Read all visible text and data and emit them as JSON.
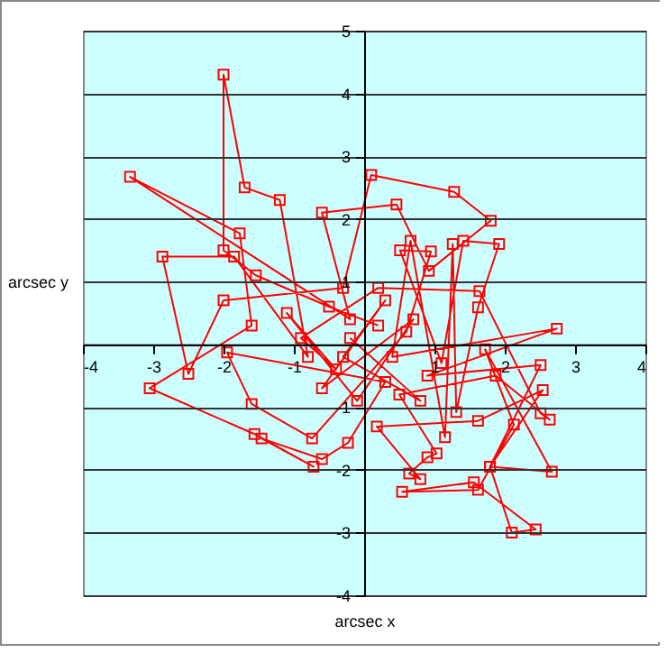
{
  "chart_data": {
    "type": "line",
    "xlabel": "arcsec x",
    "ylabel": "arcsec y",
    "xlim": [
      -4,
      4
    ],
    "ylim": [
      -4,
      5
    ],
    "xticks": [
      -4,
      -3,
      -2,
      -1,
      {
        "value": 0,
        "label": null
      },
      1,
      2,
      3,
      4
    ],
    "yticks": [
      -4,
      -3,
      -2,
      -1,
      {
        "value": 0,
        "label": null
      },
      1,
      2,
      3,
      4,
      5
    ],
    "grid": "y",
    "marker": "square",
    "line_style": "solid",
    "series": [
      {
        "color": "#ff0000",
        "x": [
          0.2,
          -0.5,
          -1.54,
          -2.0,
          -2.0,
          -1.7,
          -1.2,
          -0.8,
          -1.85,
          -2.87,
          -2.5,
          -2.0,
          -0.3,
          0.1,
          1.28,
          1.8,
          0.92,
          0.46,
          -0.6,
          -0.2,
          -3.33,
          -1.77,
          -1.6,
          -3.05,
          -1.56,
          -0.72,
          -1.46,
          -0.6,
          -0.23,
          0.3,
          -1.95,
          -1.6,
          -0.74,
          0.6,
          0.95,
          0.51,
          1.1,
          1.41,
          1.92,
          1.62,
          1.31,
          1.26,
          1.15,
          0.66,
          0.4,
          2.74,
          0.9,
          2.51,
          1.79,
          2.67,
          1.72,
          2.13,
          1.62,
          0.54,
          1.56,
          2.44,
          2.1,
          1.79,
          2.54,
          1.62,
          0.18,
          0.8,
          0.64,
          0.9,
          1.03,
          0.5,
          1.87,
          2.64,
          2.51,
          1.64,
          0.2,
          -0.9,
          -0.4,
          -1.1,
          -0.1,
          0.7,
          -0.6,
          0.3,
          -0.3,
          0.8,
          -0.2
        ],
        "values": [
          0.3,
          0.6,
          1.1,
          1.5,
          4.3,
          2.5,
          2.3,
          -0.2,
          1.4,
          1.4,
          -0.47,
          0.7,
          0.9,
          2.7,
          2.43,
          1.97,
          1.17,
          2.23,
          2.1,
          0.4,
          2.67,
          1.77,
          0.3,
          -0.7,
          -1.43,
          -1.95,
          -1.5,
          -1.83,
          -1.57,
          -0.6,
          -0.13,
          -0.95,
          -1.5,
          0.2,
          1.48,
          1.5,
          -0.3,
          1.65,
          1.6,
          0.59,
          -1.08,
          1.6,
          -1.48,
          1.65,
          -0.2,
          0.25,
          -0.5,
          -0.33,
          -1.95,
          -2.03,
          -0.08,
          -1.28,
          -2.32,
          -2.35,
          -2.2,
          -2.95,
          -3.0,
          -1.95,
          -0.73,
          -1.22,
          -1.31,
          -2.15,
          -2.06,
          -1.8,
          -1.74,
          -0.8,
          -0.5,
          -1.2,
          -1.1,
          0.85,
          0.9,
          0.1,
          -0.4,
          0.5,
          -0.9,
          0.4,
          -0.7,
          0.7,
          -0.2,
          -0.9,
          0.1
        ]
      }
    ]
  }
}
